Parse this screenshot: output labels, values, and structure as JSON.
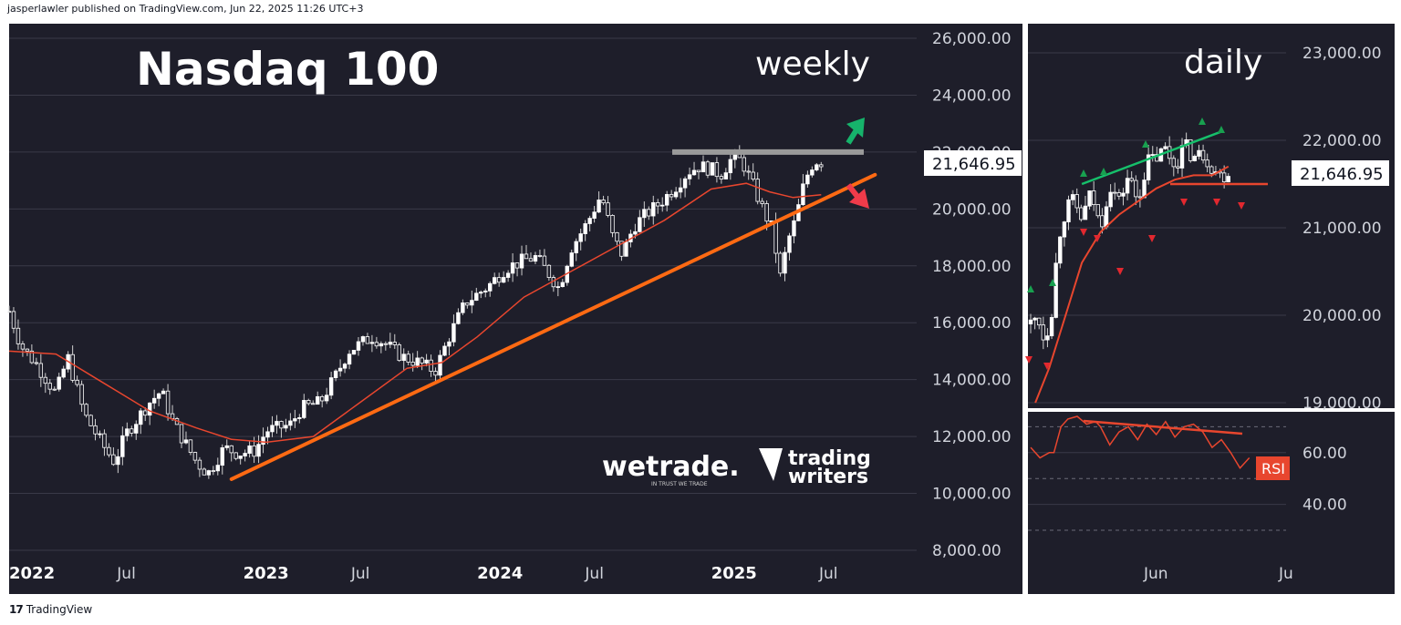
{
  "header": {
    "published": "jasperlawler published on TradingView.com, Jun 22, 2025 11:26 UTC+3"
  },
  "footer": {
    "logo_glyph": "17",
    "brand": "TradingView"
  },
  "colors": {
    "background": "#1e1e2a",
    "up_candle": "#ffffff",
    "ma": "#e8462e",
    "trendline": "#ff6a13",
    "resistance": "#9a9a9a",
    "green_arrow": "#16b36b",
    "red_arrow": "#ef3b4a",
    "rsi_line": "#e8462e",
    "rsi_label_bg": "#e8462e"
  },
  "chart_data": [
    {
      "type": "candlestick",
      "title": "Nasdaq 100",
      "timeframe_label": "weekly",
      "y_ticks": [
        "26,000.00",
        "24,000.00",
        "22,000.00",
        "20,000.00",
        "18,000.00",
        "16,000.00",
        "14,000.00",
        "12,000.00",
        "10,000.00",
        "8,000.00"
      ],
      "ylim": [
        8000,
        26000
      ],
      "x_ticks": [
        {
          "label": "2022",
          "t": 2022.0,
          "bold": true
        },
        {
          "label": "Jul",
          "t": 2022.5,
          "bold": false
        },
        {
          "label": "2023",
          "t": 2023.0,
          "bold": true
        },
        {
          "label": "Jul",
          "t": 2023.5,
          "bold": false
        },
        {
          "label": "2024",
          "t": 2024.0,
          "bold": true
        },
        {
          "label": "Jul",
          "t": 2024.5,
          "bold": false
        },
        {
          "label": "2025",
          "t": 2025.0,
          "bold": true
        },
        {
          "label": "Jul",
          "t": 2025.5,
          "bold": false
        }
      ],
      "last_price_label": "21,646.95",
      "price_path": [
        [
          2022.0,
          16400
        ],
        [
          2022.05,
          15200
        ],
        [
          2022.12,
          14500
        ],
        [
          2022.2,
          13500
        ],
        [
          2022.25,
          14800
        ],
        [
          2022.32,
          12800
        ],
        [
          2022.4,
          11700
        ],
        [
          2022.45,
          11100
        ],
        [
          2022.5,
          12100
        ],
        [
          2022.6,
          13200
        ],
        [
          2022.65,
          13600
        ],
        [
          2022.7,
          12500
        ],
        [
          2022.8,
          11100
        ],
        [
          2022.85,
          10700
        ],
        [
          2022.92,
          11600
        ],
        [
          2022.98,
          11400
        ],
        [
          2023.05,
          11500
        ],
        [
          2023.1,
          12200
        ],
        [
          2023.2,
          12400
        ],
        [
          2023.25,
          13000
        ],
        [
          2023.33,
          13200
        ],
        [
          2023.4,
          14200
        ],
        [
          2023.45,
          15000
        ],
        [
          2023.55,
          15500
        ],
        [
          2023.6,
          15300
        ],
        [
          2023.68,
          14800
        ],
        [
          2023.75,
          14600
        ],
        [
          2023.82,
          14300
        ],
        [
          2023.88,
          15500
        ],
        [
          2023.95,
          16700
        ],
        [
          2024.05,
          17300
        ],
        [
          2024.12,
          17900
        ],
        [
          2024.2,
          18200
        ],
        [
          2024.25,
          18300
        ],
        [
          2024.3,
          17800
        ],
        [
          2024.35,
          17200
        ],
        [
          2024.4,
          18600
        ],
        [
          2024.47,
          19500
        ],
        [
          2024.53,
          20500
        ],
        [
          2024.58,
          19000
        ],
        [
          2024.62,
          18400
        ],
        [
          2024.67,
          19400
        ],
        [
          2024.72,
          19800
        ],
        [
          2024.78,
          20200
        ],
        [
          2024.85,
          20800
        ],
        [
          2024.9,
          21300
        ],
        [
          2024.95,
          21500
        ],
        [
          2025.0,
          21400
        ],
        [
          2025.04,
          21200
        ],
        [
          2025.09,
          21800
        ],
        [
          2025.13,
          21700
        ],
        [
          2025.18,
          20800
        ],
        [
          2025.22,
          20000
        ],
        [
          2025.26,
          19300
        ],
        [
          2025.3,
          17400
        ],
        [
          2025.32,
          18700
        ],
        [
          2025.36,
          19600
        ],
        [
          2025.4,
          21000
        ],
        [
          2025.44,
          21700
        ],
        [
          2025.47,
          21650
        ]
      ],
      "ma_path": [
        [
          2022.0,
          15000
        ],
        [
          2022.2,
          14900
        ],
        [
          2022.4,
          13900
        ],
        [
          2022.6,
          12900
        ],
        [
          2022.8,
          12300
        ],
        [
          2022.95,
          11900
        ],
        [
          2023.1,
          11800
        ],
        [
          2023.3,
          12000
        ],
        [
          2023.5,
          13200
        ],
        [
          2023.7,
          14400
        ],
        [
          2023.85,
          14600
        ],
        [
          2024.0,
          15500
        ],
        [
          2024.2,
          16900
        ],
        [
          2024.4,
          17800
        ],
        [
          2024.6,
          18700
        ],
        [
          2024.8,
          19600
        ],
        [
          2025.0,
          20700
        ],
        [
          2025.15,
          20900
        ],
        [
          2025.25,
          20600
        ],
        [
          2025.35,
          20400
        ],
        [
          2025.47,
          20500
        ]
      ],
      "trendline": {
        "start": [
          2022.95,
          10500
        ],
        "end": [
          2025.7,
          21200
        ]
      },
      "resistance_level": 22000,
      "watermarks": [
        "wetrade.",
        "IN TRUST WE TRADE",
        "trading",
        "writers"
      ]
    },
    {
      "type": "candlestick",
      "timeframe_label": "daily",
      "y_ticks": [
        "23,000.00",
        "22,000.00",
        "21,000.00",
        "20,000.00",
        "19,000.00"
      ],
      "ylim": [
        19000,
        23000
      ],
      "x_ticks": [
        {
          "label": "Jun",
          "t": 0.55
        },
        {
          "label": "Ju",
          "t": 1.0
        }
      ],
      "last_price_label": "21,646.95",
      "price_path": [
        [
          0.0,
          19900
        ],
        [
          0.03,
          20000
        ],
        [
          0.06,
          19700
        ],
        [
          0.09,
          20050
        ],
        [
          0.12,
          20900
        ],
        [
          0.15,
          21200
        ],
        [
          0.18,
          21300
        ],
        [
          0.22,
          21100
        ],
        [
          0.26,
          21400
        ],
        [
          0.3,
          21000
        ],
        [
          0.34,
          21500
        ],
        [
          0.38,
          21300
        ],
        [
          0.42,
          21600
        ],
        [
          0.46,
          21300
        ],
        [
          0.5,
          21750
        ],
        [
          0.54,
          21800
        ],
        [
          0.58,
          21900
        ],
        [
          0.62,
          21700
        ],
        [
          0.66,
          21950
        ],
        [
          0.7,
          21800
        ],
        [
          0.74,
          21850
        ],
        [
          0.78,
          21700
        ],
        [
          0.82,
          21580
        ],
        [
          0.85,
          21646.95
        ]
      ],
      "ma_path": [
        [
          0.02,
          19000
        ],
        [
          0.08,
          19400
        ],
        [
          0.15,
          20000
        ],
        [
          0.22,
          20600
        ],
        [
          0.3,
          20950
        ],
        [
          0.38,
          21150
        ],
        [
          0.46,
          21300
        ],
        [
          0.54,
          21450
        ],
        [
          0.62,
          21550
        ],
        [
          0.7,
          21600
        ],
        [
          0.78,
          21600
        ],
        [
          0.85,
          21700
        ]
      ],
      "green_trend": {
        "start": [
          0.22,
          21500
        ],
        "end": [
          0.82,
          22100
        ]
      },
      "support_level": 21500,
      "rsi": {
        "label": "RSI",
        "y_ticks": [
          "60.00",
          "40.00"
        ],
        "ylim": [
          30,
          80
        ],
        "values": [
          [
            0.0,
            62
          ],
          [
            0.04,
            58
          ],
          [
            0.08,
            60
          ],
          [
            0.1,
            60
          ],
          [
            0.13,
            70
          ],
          [
            0.16,
            73
          ],
          [
            0.2,
            74
          ],
          [
            0.24,
            71
          ],
          [
            0.28,
            72
          ],
          [
            0.3,
            70
          ],
          [
            0.34,
            63
          ],
          [
            0.38,
            68
          ],
          [
            0.42,
            70
          ],
          [
            0.46,
            65
          ],
          [
            0.5,
            71
          ],
          [
            0.54,
            67
          ],
          [
            0.58,
            72
          ],
          [
            0.62,
            66
          ],
          [
            0.66,
            70
          ],
          [
            0.7,
            71
          ],
          [
            0.74,
            68
          ],
          [
            0.78,
            62
          ],
          [
            0.82,
            65
          ],
          [
            0.86,
            60
          ],
          [
            0.9,
            54
          ],
          [
            0.94,
            58
          ]
        ]
      }
    }
  ]
}
